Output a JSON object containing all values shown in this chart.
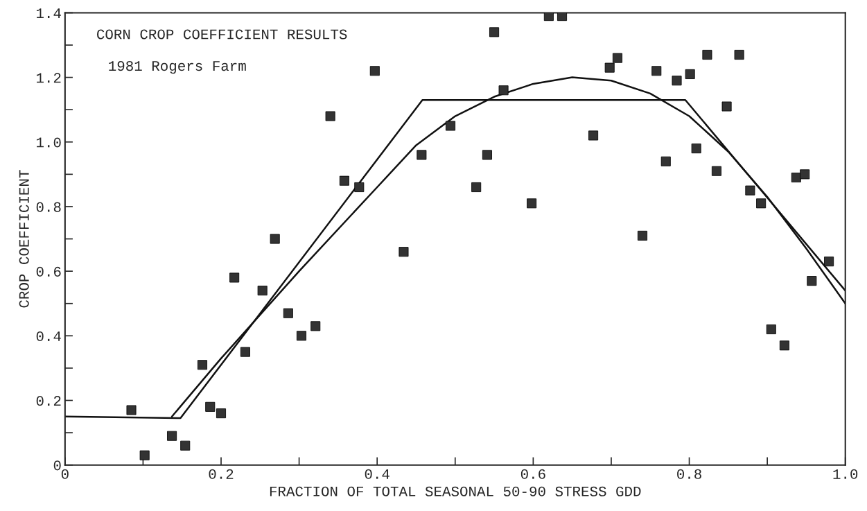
{
  "chart_data": {
    "type": "scatter",
    "title": "CORN CROP COEFFICIENT RESULTS",
    "annotations": [
      "1981 Rogers Farm"
    ],
    "xlabel": "FRACTION OF TOTAL SEASONAL 50-90 STRESS GDD",
    "ylabel": "CROP COEFFICIENT",
    "xlim": [
      0,
      1.0
    ],
    "ylim": [
      0,
      1.4
    ],
    "xticks": [
      0,
      {
        "value": 0.1,
        "label": null
      },
      0.2,
      {
        "value": 0.3,
        "label": null
      },
      0.4,
      {
        "value": 0.5,
        "label": null
      },
      0.6,
      {
        "value": 0.7,
        "label": null
      },
      0.8,
      {
        "value": 0.9,
        "label": null
      },
      {
        "value": 1.0,
        "label": "1.0"
      }
    ],
    "yticks": [
      0,
      {
        "value": 0.1,
        "label": null
      },
      0.2,
      {
        "value": 0.3,
        "label": null
      },
      0.4,
      {
        "value": 0.5,
        "label": null
      },
      0.6,
      {
        "value": 0.7,
        "label": null
      },
      0.8,
      {
        "value": 0.9,
        "label": null
      },
      {
        "value": 1.0,
        "label": "1.0"
      },
      {
        "value": 1.1,
        "label": null
      },
      1.2,
      {
        "value": 1.3,
        "label": null
      },
      1.4
    ],
    "grid": false,
    "legend": false,
    "marker": "square",
    "series": [
      {
        "color": "#333333",
        "x": [
          0.085,
          0.102,
          0.137,
          0.154,
          0.176,
          0.186,
          0.2,
          0.217,
          0.231,
          0.253,
          0.269,
          0.286,
          0.303,
          0.321,
          0.34,
          0.358,
          0.377,
          0.397,
          0.434,
          0.457,
          0.494,
          0.527,
          0.541,
          0.55,
          0.562,
          0.598,
          0.62,
          0.637,
          0.677,
          0.698,
          0.708,
          0.74,
          0.758,
          0.77,
          0.784,
          0.801,
          0.809,
          0.823,
          0.835,
          0.848,
          0.864,
          0.878,
          0.892,
          0.905,
          0.922,
          0.937,
          0.948,
          0.957,
          0.979
        ],
        "values": [
          0.17,
          0.03,
          0.09,
          0.06,
          0.31,
          0.18,
          0.16,
          0.58,
          0.35,
          0.54,
          0.7,
          0.47,
          0.4,
          0.43,
          1.08,
          0.88,
          0.86,
          1.22,
          0.66,
          0.96,
          1.05,
          0.86,
          0.96,
          1.34,
          1.16,
          0.81,
          1.39,
          1.39,
          1.02,
          1.23,
          1.26,
          0.71,
          1.22,
          0.94,
          1.19,
          1.21,
          0.98,
          1.27,
          0.91,
          1.11,
          1.27,
          0.85,
          0.81,
          0.42,
          0.37,
          0.89,
          0.9,
          0.57,
          0.63
        ]
      },
      {
        "type": "line",
        "marker": "none",
        "color": "#111111",
        "x": [
          0,
          0.148,
          0.458,
          0.795,
          1.0
        ],
        "values": [
          0.15,
          0.145,
          1.13,
          1.13,
          0.54
        ]
      },
      {
        "type": "line",
        "marker": "none",
        "color": "#111111",
        "x": [
          0.137,
          0.2,
          0.3,
          0.4,
          0.45,
          0.5,
          0.55,
          0.6,
          0.65,
          0.7,
          0.75,
          0.8,
          0.85,
          0.9,
          0.95,
          1.0
        ],
        "values": [
          0.15,
          0.33,
          0.6,
          0.86,
          0.99,
          1.08,
          1.14,
          1.18,
          1.2,
          1.19,
          1.15,
          1.08,
          0.97,
          0.83,
          0.67,
          0.5
        ]
      }
    ]
  }
}
